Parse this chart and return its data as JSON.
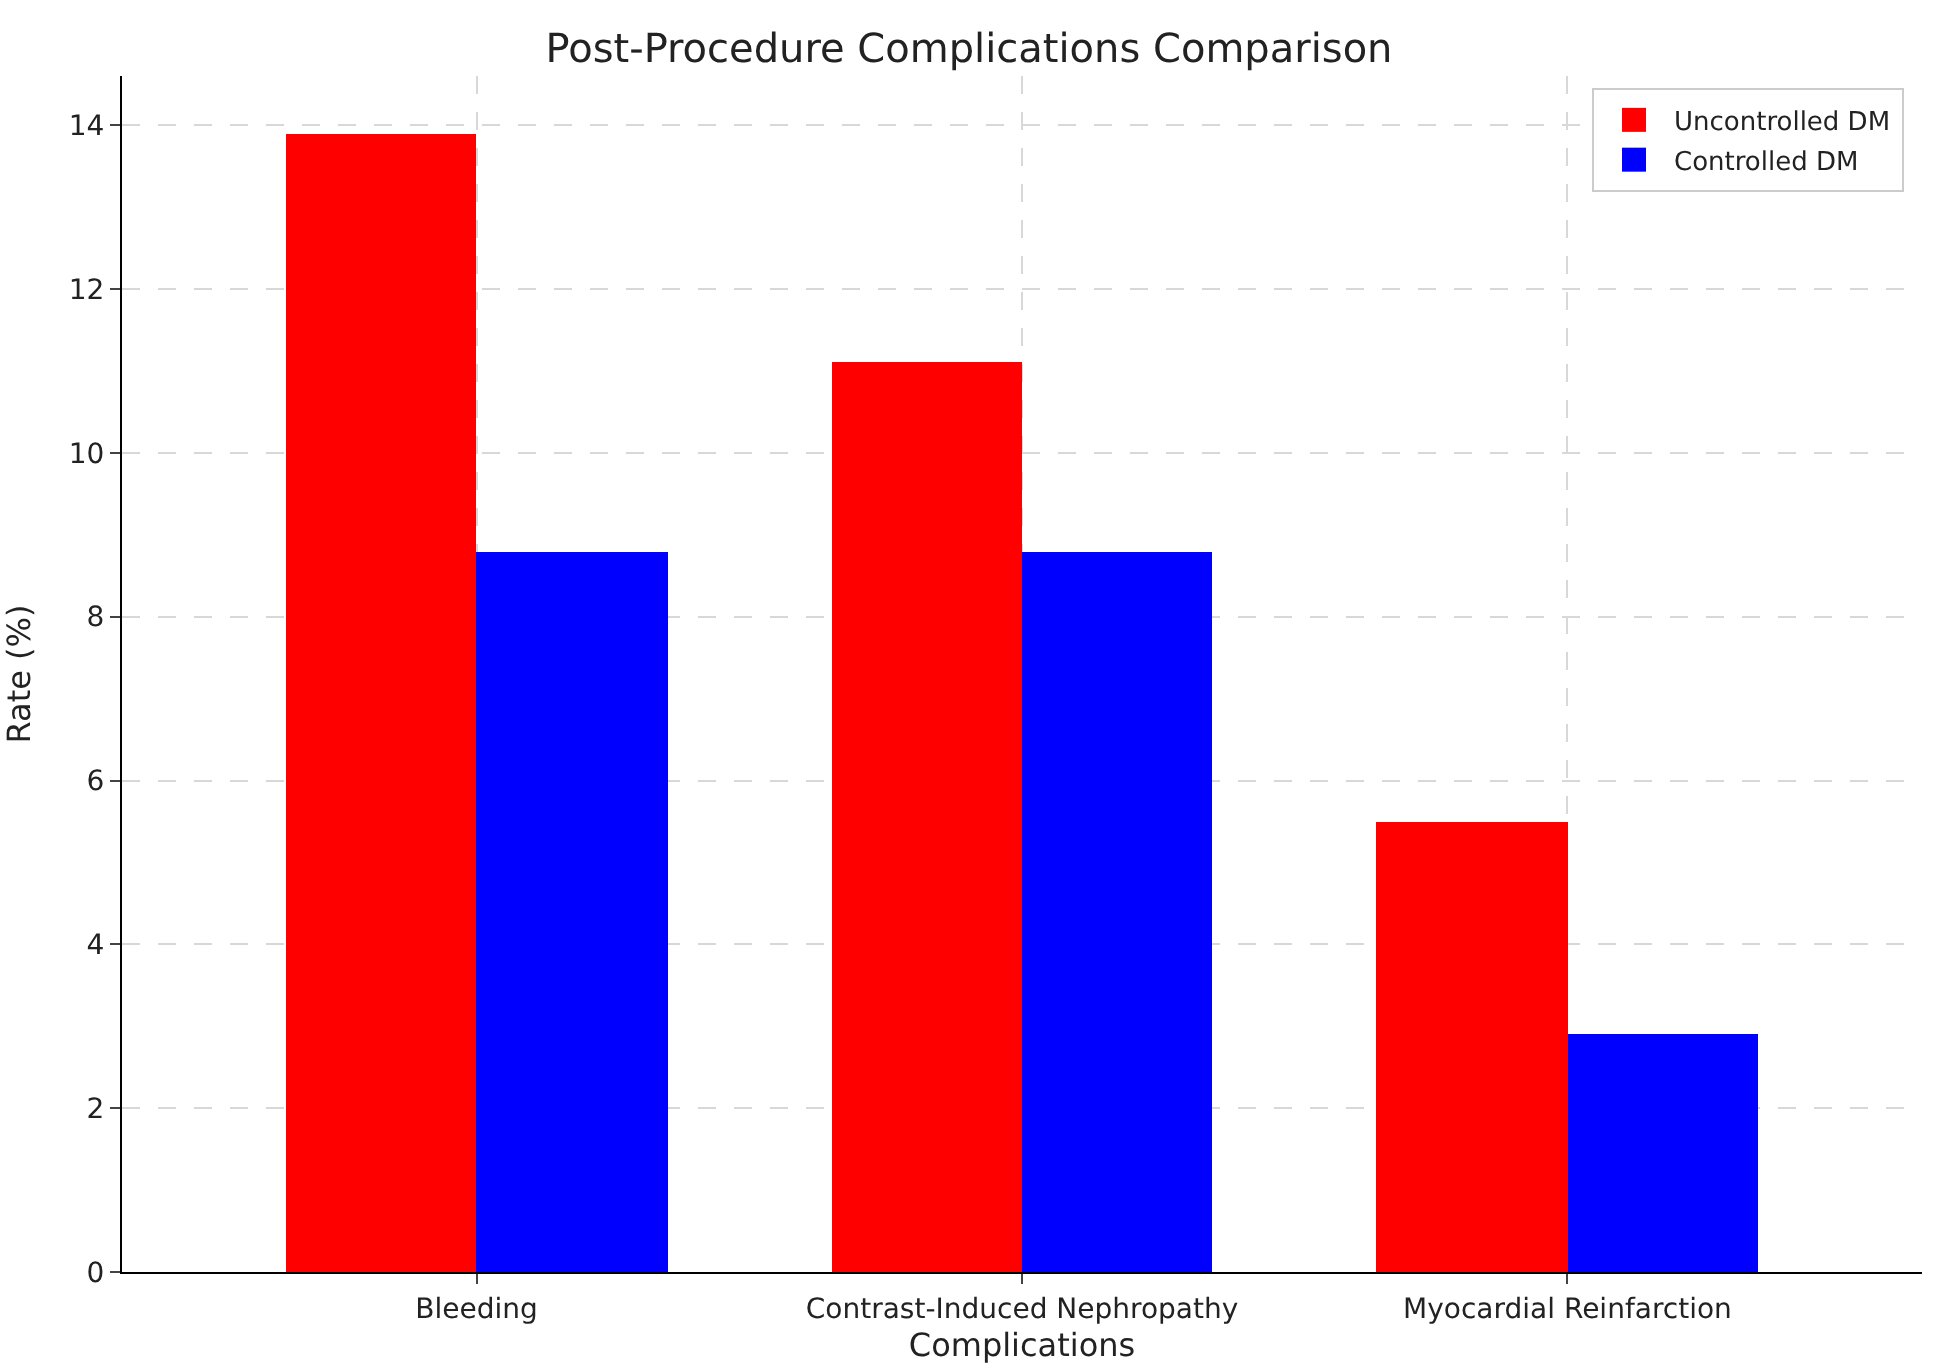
{
  "chart_data": {
    "type": "bar",
    "title": "Post-Procedure Complications Comparison",
    "xlabel": "Complications",
    "ylabel": "Rate (%)",
    "categories": [
      "Bleeding",
      "Contrast-Induced Nephropathy",
      "Myocardial Reinfarction"
    ],
    "series": [
      {
        "name": "Uncontrolled DM",
        "color": "#ff0000",
        "values": [
          13.9,
          11.1,
          5.5
        ]
      },
      {
        "name": "Controlled DM",
        "color": "#0000ff",
        "values": [
          8.8,
          8.8,
          2.9
        ]
      }
    ],
    "ylim": [
      0,
      14.6
    ],
    "yticks": [
      0,
      2,
      4,
      6,
      8,
      10,
      12,
      14
    ],
    "grid": true,
    "legend": "top right"
  }
}
